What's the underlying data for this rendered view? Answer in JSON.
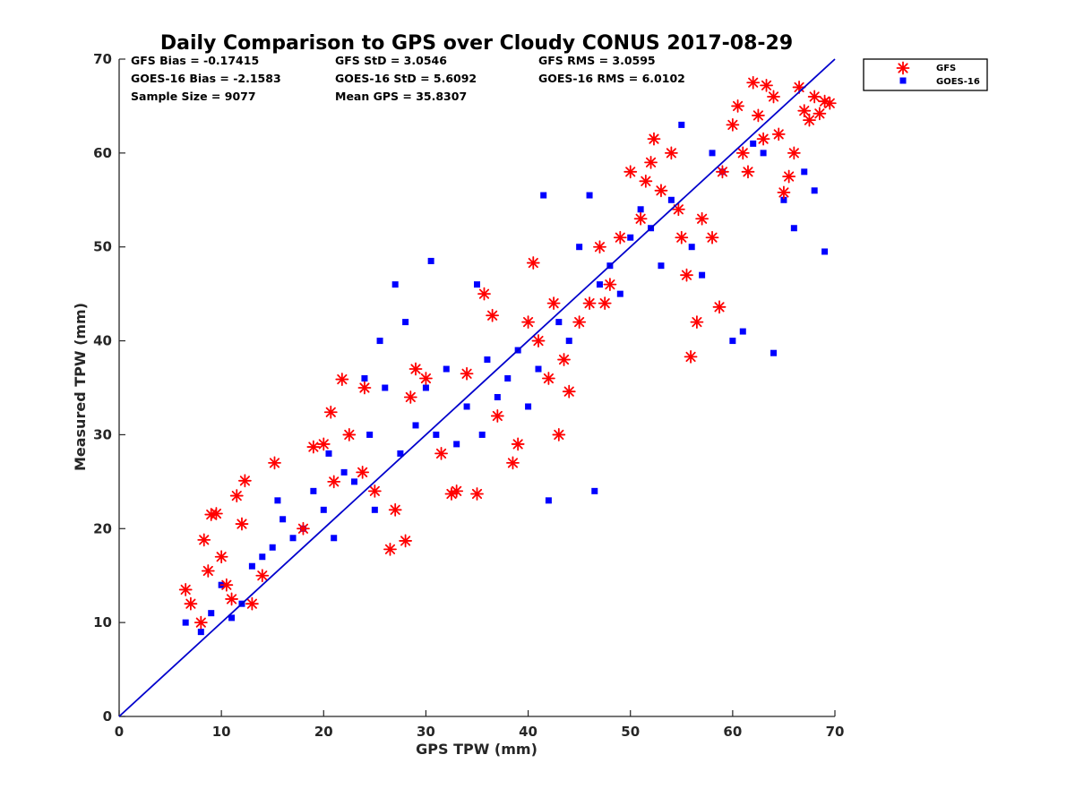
{
  "chart_data": {
    "type": "scatter",
    "title": "Daily Comparison to GPS over Cloudy CONUS 2017-08-29",
    "xlabel": "GPS TPW (mm)",
    "ylabel": "Measured TPW (mm)",
    "xlim": [
      0,
      70
    ],
    "ylim": [
      0,
      70
    ],
    "xticks": [
      "0",
      "10",
      "20",
      "30",
      "40",
      "50",
      "60",
      "70"
    ],
    "yticks": [
      "0",
      "10",
      "20",
      "30",
      "40",
      "50",
      "60",
      "70"
    ],
    "grid": false,
    "legend_position": "outside-top-right",
    "reference_line": {
      "x": [
        0,
        70
      ],
      "y": [
        0,
        70
      ],
      "color": "#0000cc"
    },
    "stats": [
      {
        "text": "GFS Bias = -0.17415"
      },
      {
        "text": "GFS StD = 3.0546"
      },
      {
        "text": "GFS RMS = 3.0595"
      },
      {
        "text": "GOES-16 Bias = -2.1583"
      },
      {
        "text": "GOES-16 StD = 5.6092"
      },
      {
        "text": "GOES-16 RMS = 6.0102"
      },
      {
        "text": "Sample Size = 9077"
      },
      {
        "text": "Mean GPS = 35.8307"
      }
    ],
    "series": [
      {
        "name": "GFS",
        "marker": "asterisk",
        "color": "#ff0000",
        "x": [
          6.5,
          7.0,
          8.0,
          8.3,
          8.7,
          9.0,
          9.5,
          10.0,
          10.5,
          11.0,
          11.5,
          12.0,
          12.3,
          13.0,
          14.0,
          15.2,
          18.0,
          19.0,
          20.0,
          20.7,
          21.0,
          21.8,
          22.5,
          23.8,
          24.0,
          25.0,
          26.5,
          27.0,
          28.0,
          28.5,
          29.0,
          30.0,
          31.5,
          32.5,
          33.0,
          34.0,
          35.0,
          35.7,
          36.5,
          37.0,
          38.5,
          39.0,
          40.0,
          40.5,
          41.0,
          42.0,
          42.5,
          43.0,
          43.5,
          44.0,
          45.0,
          46.0,
          47.0,
          47.5,
          48.0,
          49.0,
          50.0,
          51.0,
          51.5,
          52.0,
          52.3,
          53.0,
          54.0,
          54.7,
          55.0,
          55.5,
          55.9,
          56.5,
          57.0,
          58.0,
          58.7,
          59.0,
          60.0,
          60.5,
          61.0,
          61.5,
          62.0,
          62.5,
          63.0,
          63.3,
          64.0,
          64.5,
          65.0,
          65.5,
          66.0,
          66.5,
          67.0,
          67.5,
          68.0,
          68.5,
          69.0,
          69.5
        ],
        "y": [
          13.5,
          12.0,
          10.0,
          18.8,
          15.5,
          21.5,
          21.6,
          17.0,
          14.0,
          12.5,
          23.5,
          20.5,
          25.1,
          12.0,
          15.0,
          27.0,
          20.0,
          28.7,
          29.0,
          32.4,
          25.0,
          35.9,
          30.0,
          26.0,
          35.0,
          24.0,
          17.8,
          22.0,
          18.7,
          34.0,
          37.0,
          36.0,
          28.0,
          23.7,
          24.0,
          36.5,
          23.7,
          45.0,
          42.7,
          32.0,
          27.0,
          29.0,
          42.0,
          48.3,
          40.0,
          36.0,
          44.0,
          30.0,
          38.0,
          34.6,
          42.0,
          44.0,
          50.0,
          44.0,
          46.0,
          51.0,
          58.0,
          53.0,
          57.0,
          59.0,
          61.5,
          56.0,
          60.0,
          54.0,
          51.0,
          47.0,
          38.3,
          42.0,
          53.0,
          51.0,
          43.6,
          58.0,
          63.0,
          65.0,
          60.0,
          58.0,
          67.5,
          64.0,
          61.5,
          67.2,
          66.0,
          62.0,
          55.8,
          57.5,
          60.0,
          67.0,
          64.5,
          63.5,
          66.0,
          64.2,
          65.5,
          65.3
        ]
      },
      {
        "name": "GOES-16",
        "marker": "square",
        "color": "#0000ff",
        "x": [
          6.5,
          8.0,
          9.0,
          10.0,
          11.0,
          12.0,
          13.0,
          14.0,
          15.0,
          15.5,
          16.0,
          17.0,
          18.0,
          19.0,
          20.0,
          20.5,
          21.0,
          22.0,
          23.0,
          24.0,
          24.5,
          25.0,
          25.5,
          26.0,
          27.0,
          27.5,
          28.0,
          29.0,
          30.0,
          30.5,
          31.0,
          32.0,
          33.0,
          34.0,
          35.0,
          35.5,
          36.0,
          37.0,
          38.0,
          39.0,
          40.0,
          41.0,
          41.5,
          42.0,
          43.0,
          44.0,
          45.0,
          46.0,
          46.5,
          47.0,
          48.0,
          49.0,
          50.0,
          51.0,
          52.0,
          53.0,
          54.0,
          55.0,
          56.0,
          57.0,
          58.0,
          59.0,
          60.0,
          61.0,
          62.0,
          63.0,
          64.0,
          65.0,
          66.0,
          67.0,
          68.0,
          69.0
        ],
        "y": [
          10.0,
          9.0,
          11.0,
          14.0,
          10.5,
          12.0,
          16.0,
          17.0,
          18.0,
          23.0,
          21.0,
          19.0,
          20.0,
          24.0,
          22.0,
          28.0,
          19.0,
          26.0,
          25.0,
          36.0,
          30.0,
          22.0,
          40.0,
          35.0,
          46.0,
          28.0,
          42.0,
          31.0,
          35.0,
          48.5,
          30.0,
          37.0,
          29.0,
          33.0,
          46.0,
          30.0,
          38.0,
          34.0,
          36.0,
          39.0,
          33.0,
          37.0,
          55.5,
          23.0,
          42.0,
          40.0,
          50.0,
          55.5,
          24.0,
          46.0,
          48.0,
          45.0,
          51.0,
          54.0,
          52.0,
          48.0,
          55.0,
          63.0,
          50.0,
          47.0,
          60.0,
          58.0,
          40.0,
          41.0,
          61.0,
          60.0,
          38.7,
          55.0,
          52.0,
          58.0,
          56.0,
          49.5
        ]
      }
    ]
  }
}
